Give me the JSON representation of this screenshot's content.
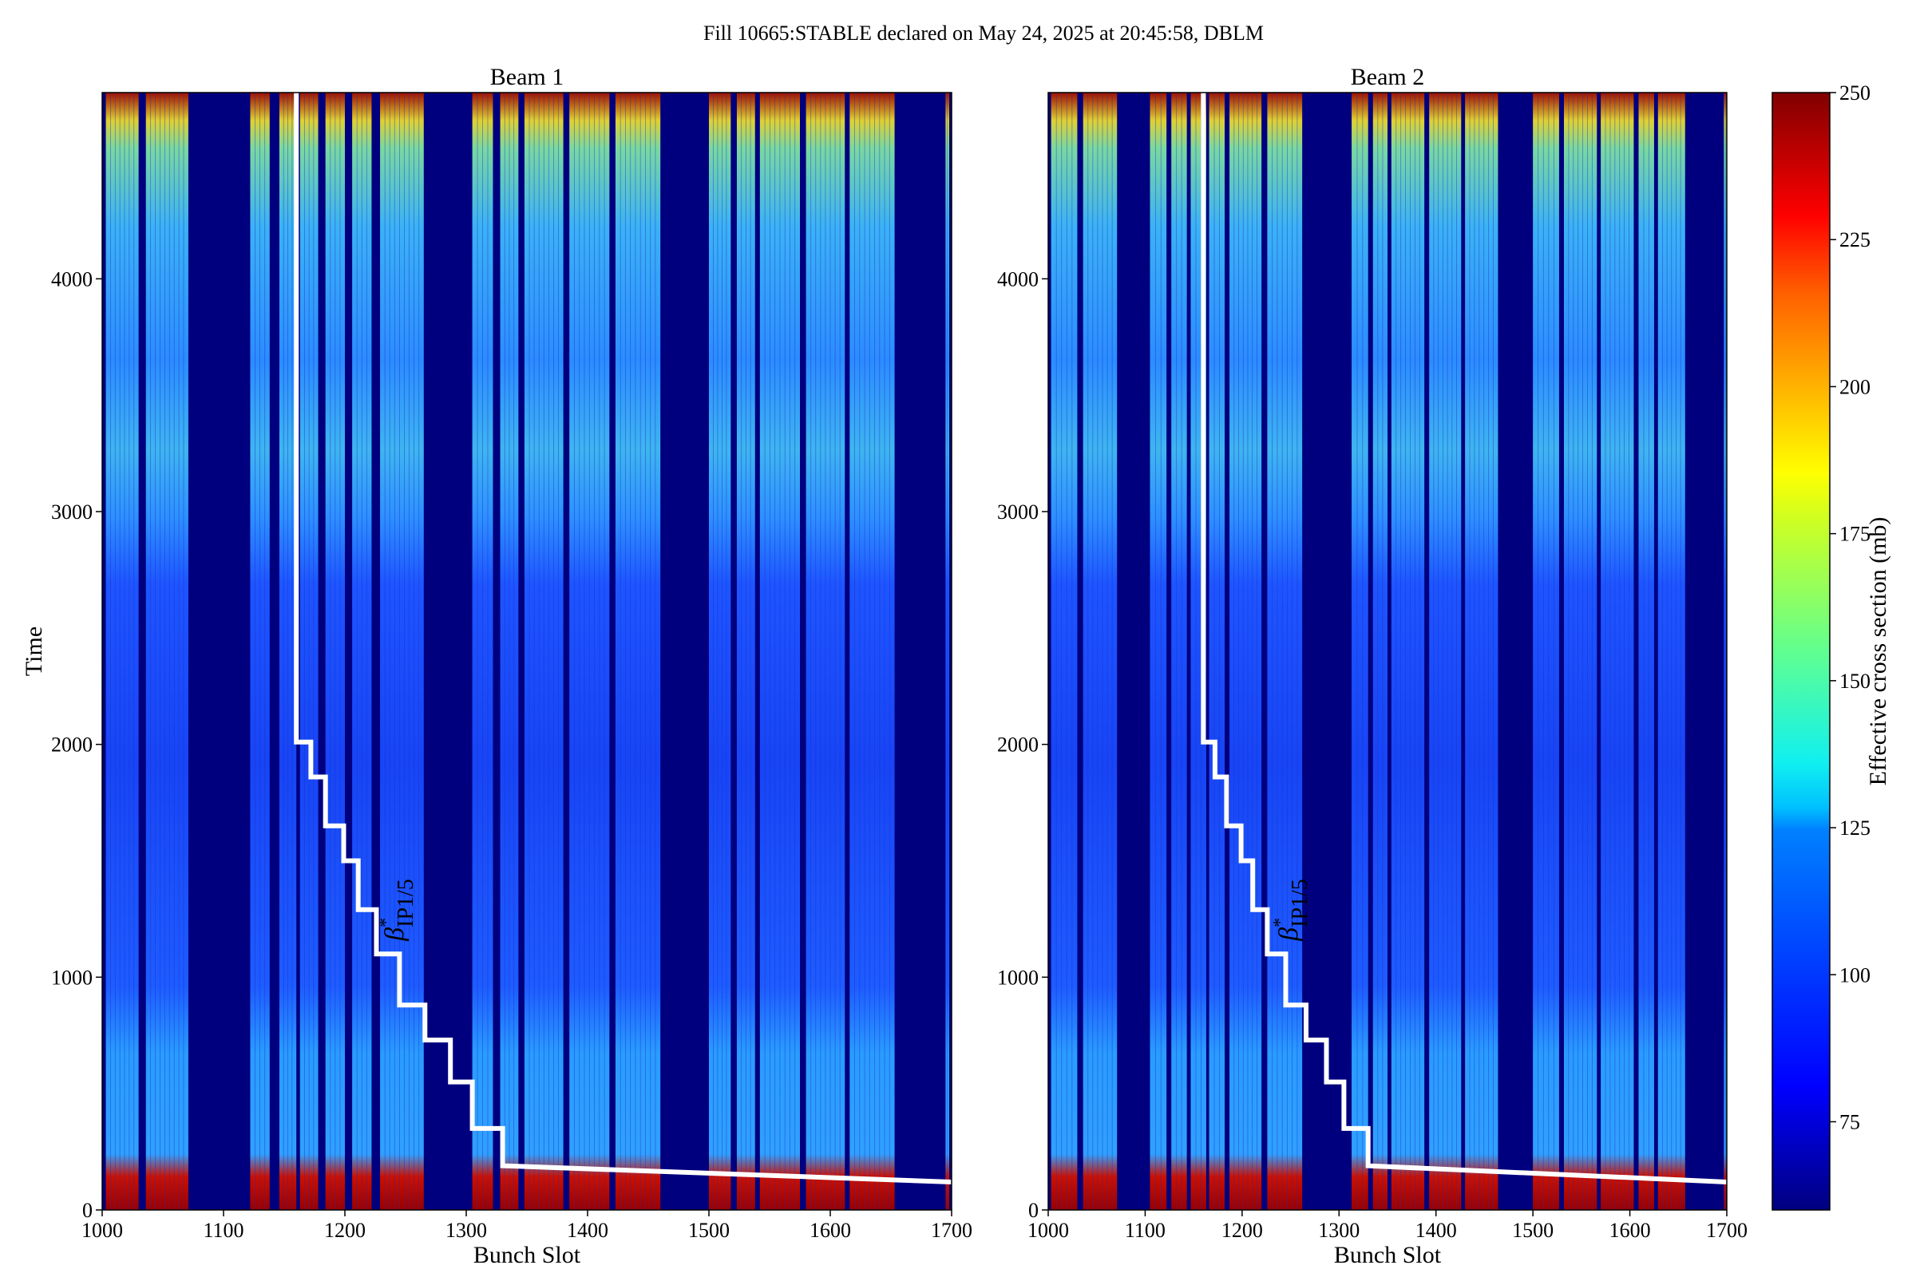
{
  "figure_title": "Fill 10665:STABLE declared on May 24, 2025 at 20:45:58, DBLM",
  "colors": {
    "background_stripe": "#00007f",
    "bunch_base": "#1a3cff",
    "step_line": "#ffffff",
    "colormap": [
      "#000080",
      "#0000ff",
      "#0080ff",
      "#00ffff",
      "#80ff80",
      "#ffff00",
      "#ff8000",
      "#ff0000",
      "#800000"
    ]
  },
  "colorbar": {
    "label": "Effective cross section (mb)",
    "range": [
      60,
      250
    ],
    "ticks": [
      "75",
      "100",
      "125",
      "150",
      "175",
      "200",
      "225",
      "250"
    ]
  },
  "annotation": {
    "symbol": "β",
    "superscript": "*",
    "subscript": "IP1/5"
  },
  "chart_data": [
    {
      "type": "heatmap",
      "title": "Beam 1",
      "xlabel": "Bunch Slot",
      "ylabel": "Time",
      "xlim": [
        1000,
        1700
      ],
      "ylim": [
        0,
        4800
      ],
      "xticks": [
        "1000",
        "1100",
        "1200",
        "1300",
        "1400",
        "1500",
        "1600",
        "1700"
      ],
      "yticks": [
        "0",
        "1000",
        "2000",
        "3000",
        "4000"
      ],
      "filled_slot_groups": [
        [
          1003,
          1030
        ],
        [
          1036,
          1071
        ],
        [
          1122,
          1138
        ],
        [
          1146,
          1160
        ],
        [
          1163,
          1178
        ],
        [
          1184,
          1200
        ],
        [
          1206,
          1222
        ],
        [
          1229,
          1265
        ],
        [
          1305,
          1322
        ],
        [
          1328,
          1343
        ],
        [
          1348,
          1380
        ],
        [
          1385,
          1418
        ],
        [
          1423,
          1460
        ],
        [
          1500,
          1518
        ],
        [
          1523,
          1538
        ],
        [
          1542,
          1575
        ],
        [
          1580,
          1612
        ],
        [
          1616,
          1653
        ],
        [
          1695,
          1698
        ]
      ],
      "beta_star_step_line": {
        "x": [
          1160,
          1160,
          1172,
          1172,
          1184,
          1184,
          1199,
          1199,
          1211,
          1211,
          1226,
          1226,
          1245,
          1245,
          1266,
          1266,
          1287,
          1287,
          1305,
          1305,
          1330,
          1330,
          1700
        ],
        "y": [
          4800,
          2010,
          2010,
          1860,
          1860,
          1650,
          1650,
          1500,
          1500,
          1290,
          1290,
          1100,
          1100,
          880,
          880,
          730,
          730,
          550,
          550,
          350,
          350,
          190,
          120
        ]
      }
    },
    {
      "type": "heatmap",
      "title": "Beam 2",
      "xlabel": "Bunch Slot",
      "ylabel": "",
      "xlim": [
        1000,
        1700
      ],
      "ylim": [
        0,
        4800
      ],
      "xticks": [
        "1000",
        "1100",
        "1200",
        "1300",
        "1400",
        "1500",
        "1600",
        "1700"
      ],
      "yticks": [
        "0",
        "1000",
        "2000",
        "3000",
        "4000"
      ],
      "filled_slot_groups": [
        [
          1003,
          1030
        ],
        [
          1036,
          1071
        ],
        [
          1105,
          1122
        ],
        [
          1127,
          1143
        ],
        [
          1147,
          1163
        ],
        [
          1166,
          1182
        ],
        [
          1187,
          1220
        ],
        [
          1226,
          1262
        ],
        [
          1313,
          1330
        ],
        [
          1335,
          1350
        ],
        [
          1354,
          1388
        ],
        [
          1393,
          1426
        ],
        [
          1430,
          1464
        ],
        [
          1500,
          1527
        ],
        [
          1532,
          1566
        ],
        [
          1570,
          1604
        ],
        [
          1609,
          1625
        ],
        [
          1629,
          1657
        ],
        [
          1697,
          1700
        ]
      ],
      "beta_star_step_line": {
        "x": [
          1160,
          1160,
          1172,
          1172,
          1184,
          1184,
          1199,
          1199,
          1211,
          1211,
          1226,
          1226,
          1245,
          1245,
          1266,
          1266,
          1287,
          1287,
          1305,
          1305,
          1330,
          1330,
          1700
        ],
        "y": [
          4800,
          2010,
          2010,
          1860,
          1860,
          1650,
          1650,
          1500,
          1500,
          1290,
          1290,
          1100,
          1100,
          880,
          880,
          730,
          730,
          550,
          550,
          350,
          350,
          190,
          120
        ]
      }
    }
  ]
}
